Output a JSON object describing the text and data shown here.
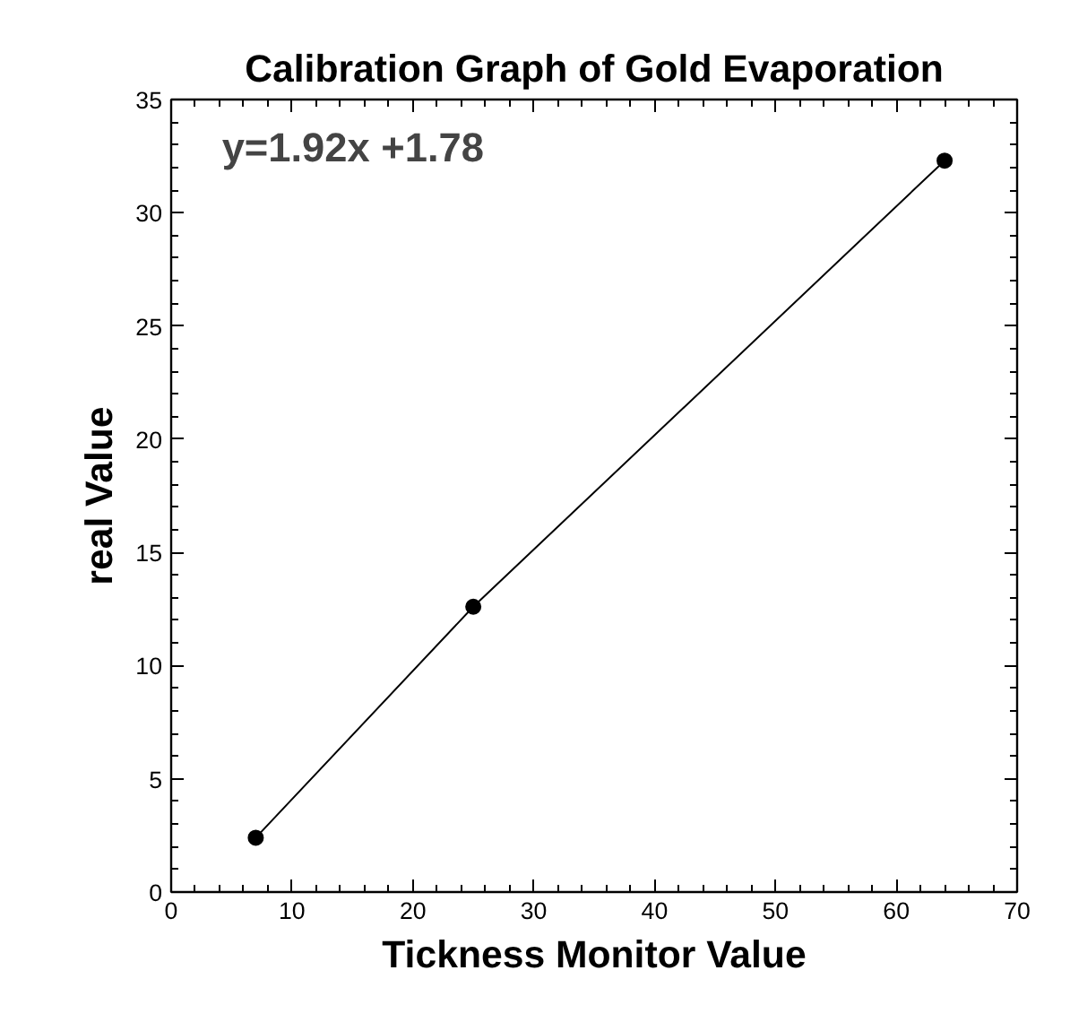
{
  "chart_data": {
    "type": "line",
    "title": "Calibration Graph of Gold Evaporation",
    "xlabel": "Tickness Monitor Value",
    "ylabel": "real Value",
    "x": [
      7,
      25,
      64
    ],
    "series": [
      {
        "color": "#000000",
        "values": [
          2.4,
          12.6,
          32.3
        ]
      }
    ],
    "marker": "circle",
    "line_style": "solid",
    "xlim": [
      0,
      70
    ],
    "xticks": [
      0,
      10,
      20,
      30,
      40,
      50,
      60,
      70
    ],
    "ylim": [
      0,
      35
    ],
    "yticks": [
      0,
      5,
      10,
      15,
      20,
      25,
      30,
      35
    ],
    "grid": false,
    "annotations": [
      "y=1.92x +1.78"
    ]
  }
}
